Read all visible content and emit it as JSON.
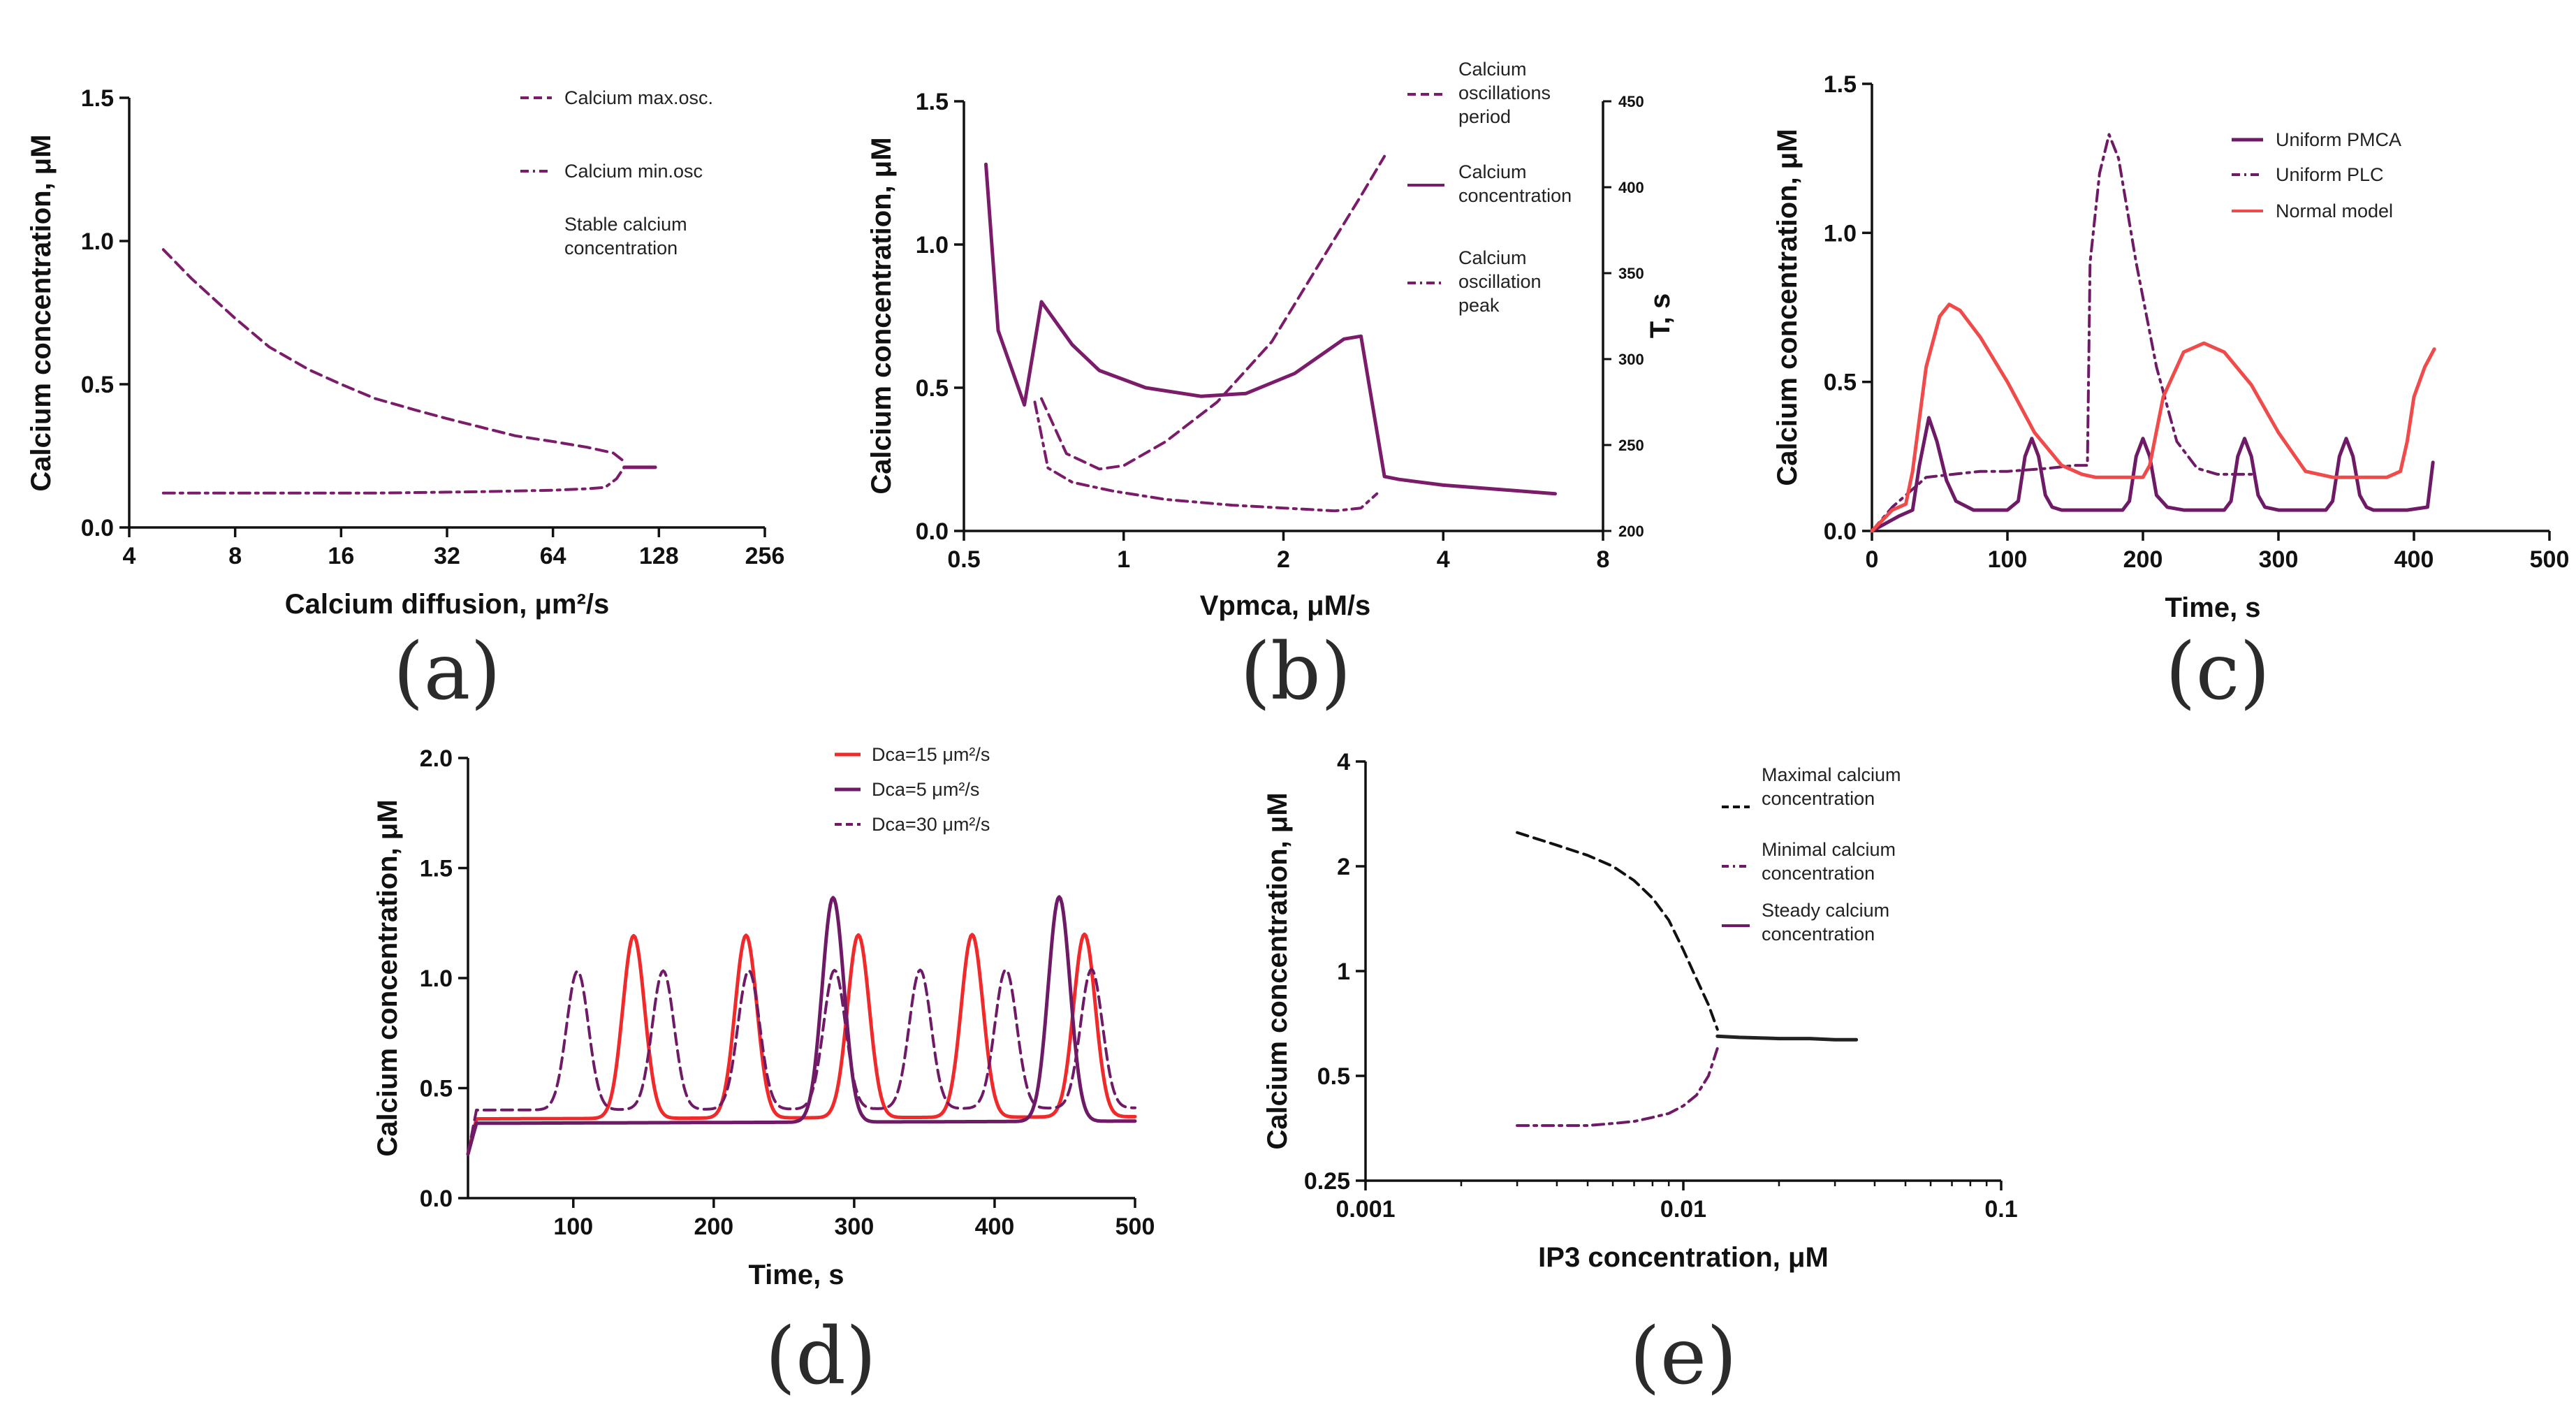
{
  "panels": [
    {
      "label": "(a)"
    },
    {
      "label": "(b)"
    },
    {
      "label": "(c)"
    },
    {
      "label": "(d)"
    },
    {
      "label": "(e)"
    }
  ],
  "chart_data": [
    {
      "type": "line",
      "panel": "(a)",
      "xlabel": "Calcium diffusion, μm²/s",
      "ylabel": "Calcium concentration, μM",
      "xscale": "log2",
      "xlim": [
        4,
        256
      ],
      "ylim": [
        0,
        1.5
      ],
      "xticks": [
        4,
        8,
        16,
        32,
        64,
        128,
        256
      ],
      "yticks": [
        0,
        0.5,
        1.0,
        1.5
      ],
      "xtick_labels": [
        "4",
        "8",
        "16",
        "32",
        "64",
        "128",
        "256"
      ],
      "ytick_labels": [
        "0.0",
        "0.5",
        "1.0",
        "1.5"
      ],
      "series": [
        {
          "name": "Calcium max.osc.",
          "style": "dash",
          "color": "#7b1c6b",
          "x": [
            5,
            6,
            8,
            10,
            13,
            16,
            20,
            26,
            32,
            40,
            50,
            64,
            80,
            95,
            102
          ],
          "y": [
            0.97,
            0.87,
            0.73,
            0.63,
            0.55,
            0.5,
            0.45,
            0.41,
            0.38,
            0.35,
            0.32,
            0.3,
            0.28,
            0.26,
            0.23
          ]
        },
        {
          "name": "Calcium min.osc",
          "style": "dashdot",
          "color": "#7b1c6b",
          "x": [
            5,
            10,
            20,
            40,
            64,
            80,
            90,
            97,
            102
          ],
          "y": [
            0.12,
            0.12,
            0.12,
            0.125,
            0.13,
            0.135,
            0.14,
            0.17,
            0.21
          ]
        },
        {
          "name": "Stable calcium concentration",
          "style": "solid",
          "color": "#7b1c6b",
          "x": [
            102,
            125
          ],
          "y": [
            0.21,
            0.21
          ]
        }
      ]
    },
    {
      "type": "line",
      "panel": "(b)",
      "xlabel": "Vpmca, μM/s",
      "ylabel": "Calcium concentration, μM",
      "y2label": "T, s",
      "xscale": "log2",
      "xlim": [
        0.5,
        8
      ],
      "ylim": [
        0,
        1.5
      ],
      "y2lim": [
        200,
        450
      ],
      "xticks": [
        0.5,
        1,
        2,
        4,
        8
      ],
      "xtick_labels": [
        "0.5",
        "1",
        "2",
        "4",
        "8"
      ],
      "yticks": [
        0,
        0.5,
        1.0,
        1.5
      ],
      "ytick_labels": [
        "0.0",
        "0.5",
        "1.0",
        "1.5"
      ],
      "y2ticks": [
        200,
        250,
        300,
        350,
        400,
        450
      ],
      "y2tick_labels": [
        "200",
        "250",
        "300",
        "350",
        "400",
        "450"
      ],
      "series": [
        {
          "name": "Calcium oscillations period",
          "axis": "y2",
          "style": "dash",
          "color": "#7b1c6b",
          "x": [
            0.7,
            0.78,
            0.9,
            1.0,
            1.2,
            1.5,
            1.9,
            2.3,
            2.8,
            3.1
          ],
          "y": [
            277,
            245,
            236,
            238,
            252,
            275,
            310,
            352,
            395,
            418
          ]
        },
        {
          "name": "Calcium concentration",
          "axis": "y",
          "style": "solid",
          "color": "#7b1c6b",
          "x": [
            0.55,
            0.58,
            0.65,
            0.7,
            0.8,
            0.9,
            1.1,
            1.4,
            1.7,
            2.1,
            2.6,
            2.8,
            3.1,
            3.3,
            4.0,
            6.5
          ],
          "y": [
            1.28,
            0.7,
            0.44,
            0.8,
            0.65,
            0.56,
            0.5,
            0.47,
            0.48,
            0.55,
            0.67,
            0.68,
            0.19,
            0.18,
            0.16,
            0.13
          ]
        },
        {
          "name": "Calcium oscillation peak",
          "axis": "y",
          "style": "dashdot",
          "color": "#7b1c6b",
          "x": [
            0.68,
            0.72,
            0.8,
            0.95,
            1.2,
            1.6,
            2.0,
            2.5,
            2.8,
            3.0
          ],
          "y": [
            0.45,
            0.22,
            0.17,
            0.14,
            0.11,
            0.09,
            0.08,
            0.07,
            0.08,
            0.13
          ]
        }
      ]
    },
    {
      "type": "line",
      "panel": "(c)",
      "xlabel": "Time, s",
      "ylabel": "Calcium concentration, μM",
      "xlim": [
        0,
        500
      ],
      "ylim": [
        0,
        1.5
      ],
      "xticks": [
        0,
        100,
        200,
        300,
        400,
        500
      ],
      "xtick_labels": [
        "0",
        "100",
        "200",
        "300",
        "400",
        "500"
      ],
      "yticks": [
        0,
        0.5,
        1.0,
        1.5
      ],
      "ytick_labels": [
        "0.0",
        "0.5",
        "1.0",
        "1.5"
      ],
      "series": [
        {
          "name": "Uniform PMCA",
          "style": "solid",
          "color": "#6e1a67",
          "x": [
            0,
            20,
            30,
            35,
            42,
            48,
            55,
            62,
            75,
            90,
            100,
            108,
            113,
            118,
            123,
            128,
            133,
            140,
            150,
            160,
            175,
            185,
            190,
            195,
            200,
            205,
            210,
            218,
            230,
            245,
            260,
            265,
            270,
            275,
            280,
            285,
            290,
            300,
            315,
            335,
            340,
            345,
            350,
            355,
            360,
            365,
            370,
            380,
            395,
            410,
            414
          ],
          "y": [
            0,
            0.05,
            0.07,
            0.22,
            0.38,
            0.3,
            0.17,
            0.1,
            0.07,
            0.07,
            0.07,
            0.1,
            0.25,
            0.31,
            0.25,
            0.12,
            0.08,
            0.07,
            0.07,
            0.07,
            0.07,
            0.07,
            0.1,
            0.25,
            0.31,
            0.25,
            0.12,
            0.08,
            0.07,
            0.07,
            0.07,
            0.1,
            0.25,
            0.31,
            0.25,
            0.12,
            0.08,
            0.07,
            0.07,
            0.07,
            0.1,
            0.25,
            0.31,
            0.25,
            0.12,
            0.08,
            0.07,
            0.07,
            0.07,
            0.08,
            0.23
          ]
        },
        {
          "name": "Uniform PLC",
          "style": "dashdot",
          "color": "#6e1a67",
          "x": [
            0,
            15,
            30,
            40,
            60,
            80,
            100,
            130,
            150,
            159,
            161,
            168,
            175,
            182,
            195,
            210,
            225,
            240,
            255,
            280
          ],
          "y": [
            0,
            0.08,
            0.14,
            0.18,
            0.19,
            0.2,
            0.2,
            0.21,
            0.22,
            0.22,
            0.9,
            1.2,
            1.33,
            1.25,
            0.9,
            0.55,
            0.3,
            0.21,
            0.19,
            0.19
          ]
        },
        {
          "name": "Normal model",
          "style": "solid",
          "color": "#f04a4a",
          "x": [
            0,
            15,
            25,
            30,
            40,
            50,
            57,
            65,
            80,
            100,
            120,
            140,
            155,
            165,
            180,
            200,
            205,
            215,
            230,
            245,
            260,
            280,
            300,
            320,
            340,
            360,
            380,
            390,
            395,
            400,
            408,
            415
          ],
          "y": [
            0,
            0.07,
            0.09,
            0.2,
            0.55,
            0.72,
            0.76,
            0.74,
            0.65,
            0.5,
            0.33,
            0.22,
            0.19,
            0.18,
            0.18,
            0.18,
            0.22,
            0.45,
            0.6,
            0.63,
            0.6,
            0.49,
            0.33,
            0.2,
            0.18,
            0.18,
            0.18,
            0.2,
            0.3,
            0.45,
            0.55,
            0.61
          ]
        }
      ]
    },
    {
      "type": "line",
      "panel": "(d)",
      "xlabel": "Time, s",
      "ylabel": "Calcium concentration, μM",
      "xlim": [
        25,
        500
      ],
      "ylim": [
        0,
        2.0
      ],
      "xticks": [
        100,
        200,
        300,
        400,
        500
      ],
      "xtick_labels": [
        "100",
        "200",
        "300",
        "400",
        "500"
      ],
      "yticks": [
        0,
        0.5,
        1.0,
        1.5,
        2.0
      ],
      "ytick_labels": [
        "0.0",
        "0.5",
        "1.0",
        "1.5",
        "2.0"
      ],
      "peak_width": 11,
      "series": [
        {
          "name": "Dca=15 μm²/s",
          "style": "solid",
          "color": "#f02a2a",
          "baseline": 0.36,
          "peaks": [
            143,
            223,
            303,
            384,
            464
          ],
          "amp": 1.19,
          "x_start": 25,
          "x_end": 500
        },
        {
          "name": "Dca=5 μm²/s",
          "style": "solid",
          "color": "#6e1a67",
          "baseline": 0.34,
          "peaks": [
            285,
            446
          ],
          "amp": 1.36,
          "x_start": 25,
          "x_end": 500
        },
        {
          "name": "Dca=30 μm²/s",
          "style": "dash",
          "color": "#6e1a67",
          "baseline": 0.4,
          "peaks": [
            103,
            164,
            225,
            286,
            347,
            408,
            469
          ],
          "amp": 1.03,
          "x_start": 25,
          "x_end": 500
        }
      ]
    },
    {
      "type": "line",
      "panel": "(e)",
      "xlabel": "IP3 concentration, μM",
      "ylabel": "Calcium concentration, μM",
      "xscale": "log10",
      "yscale": "log2",
      "xlim": [
        0.001,
        0.1
      ],
      "ylim": [
        0.25,
        4
      ],
      "xticks": [
        0.001,
        0.01,
        0.1
      ],
      "xtick_labels": [
        "0.001",
        "0.01",
        "0.1"
      ],
      "yticks": [
        0.25,
        0.5,
        1,
        2,
        4
      ],
      "ytick_labels": [
        "0.25",
        "0.5",
        "1",
        "2",
        "4"
      ],
      "series": [
        {
          "name": "Maximal calcium concentration",
          "style": "dash",
          "color": "#111111",
          "x": [
            0.003,
            0.004,
            0.005,
            0.006,
            0.007,
            0.008,
            0.009,
            0.01,
            0.011,
            0.012,
            0.0128
          ],
          "y": [
            2.5,
            2.3,
            2.15,
            2.0,
            1.82,
            1.62,
            1.4,
            1.15,
            0.95,
            0.8,
            0.68
          ]
        },
        {
          "name": "Minimal calcium concentration",
          "style": "dashdot",
          "color": "#6e1a67",
          "x": [
            0.003,
            0.004,
            0.005,
            0.006,
            0.007,
            0.008,
            0.009,
            0.01,
            0.011,
            0.012,
            0.0128
          ],
          "y": [
            0.36,
            0.36,
            0.36,
            0.365,
            0.37,
            0.38,
            0.39,
            0.41,
            0.44,
            0.5,
            0.6
          ]
        },
        {
          "name": "Steady calcium concentration",
          "style": "solid",
          "color": "#222222",
          "x": [
            0.0128,
            0.015,
            0.02,
            0.025,
            0.03,
            0.035
          ],
          "y": [
            0.65,
            0.645,
            0.64,
            0.64,
            0.635,
            0.635
          ]
        }
      ]
    }
  ],
  "legends": {
    "a": [
      "Calcium max.osc.",
      "Calcium min.osc",
      "Stable calcium",
      "concentration"
    ],
    "b": [
      "Calcium",
      "oscillations",
      "period",
      "Calcium",
      "concentration",
      "Calcium",
      "oscillation",
      "peak"
    ],
    "c": [
      "Uniform PMCA",
      "Uniform PLC",
      "Normal model"
    ],
    "d": [
      "Dca=15 μm²/s",
      "Dca=5 μm²/s",
      "Dca=30 μm²/s"
    ],
    "e": [
      "Maximal calcium",
      "concentration",
      "Minimal calcium",
      "concentration",
      "Steady calcium",
      "concentration"
    ]
  }
}
